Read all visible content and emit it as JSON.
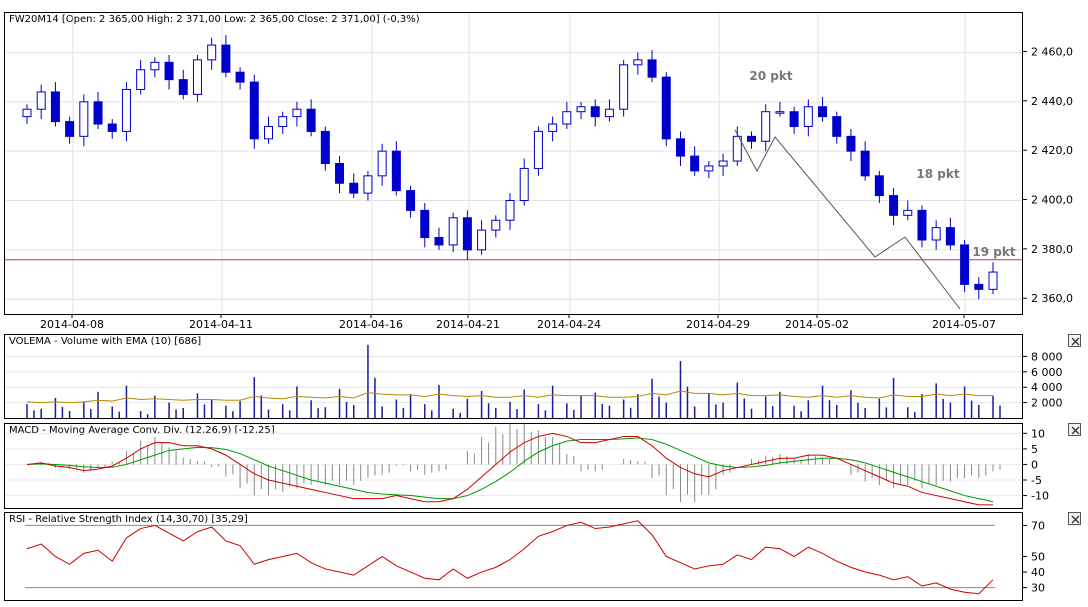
{
  "main": {
    "title": "FW20M14 [Open: 2 365,00  High: 2 371,00  Low: 2 365,00  Close: 2 371,00] (-0,3%)",
    "y_ticks": [
      "2 460,0",
      "2 440,0",
      "2 420,0",
      "2 400,0",
      "2 380,0",
      "2 360,0"
    ],
    "x_ticks": [
      "2014-04-08",
      "2014-04-11",
      "2014-04-16",
      "2014-04-21",
      "2014-04-24",
      "2014-04-29",
      "2014-05-02",
      "2014-05-07"
    ],
    "annotations": [
      "20 pkt",
      "18 pkt",
      "19 pkt"
    ],
    "ref_line_value": 2376,
    "colors": {
      "candle": "#0000cc",
      "ref_line": "#cc3333",
      "zigzag": "#555555",
      "annotation": "#777777"
    }
  },
  "volume": {
    "title": "VOLEMA - Volume with EMA (10) [686]",
    "y_ticks": [
      "8 000",
      "6 000",
      "4 000",
      "2 000"
    ],
    "colors": {
      "bars": "#1a1aa0",
      "ema": "#b58a00"
    }
  },
  "macd": {
    "title": "MACD - Moving Average Conv. Div. (12,26,9) [-12,25]",
    "y_ticks": [
      "10",
      "5",
      "0",
      "-5",
      "-10"
    ],
    "colors": {
      "macd": "#cc0000",
      "signal": "#009900",
      "hist": "#888888"
    }
  },
  "rsi": {
    "title": "RSI - Relative Strength Index (14,30,70) [35,29]",
    "y_ticks": [
      "70",
      "50",
      "40",
      "30"
    ],
    "colors": {
      "rsi": "#cc0000",
      "levels": "#888888"
    }
  },
  "chart_data": [
    {
      "type": "line",
      "title": "FW20M14 [Open: 2 365,00  High: 2 371,00  Low: 2 365,00  Close: 2 371,00] (-0,3%)",
      "series": [
        {
          "values": [
            2437,
            2444,
            2432,
            2426,
            2440,
            2431,
            2428,
            2445,
            2453,
            2456,
            2449,
            2443,
            2457,
            2463,
            2452,
            2448,
            2425,
            2430,
            2434,
            2437,
            2428,
            2415,
            2407,
            2403,
            2410,
            2420,
            2404,
            2396,
            2385,
            2382,
            2393,
            2380,
            2388,
            2392,
            2400,
            2413,
            2428,
            2431,
            2436,
            2438,
            2434,
            2437,
            2455,
            2457,
            2450,
            2425,
            2418,
            2412,
            2414,
            2416,
            2426,
            2424,
            2436,
            2436,
            2430,
            2438,
            2434,
            2426,
            2420,
            2410,
            2402,
            2394,
            2396,
            2384,
            2389,
            2382,
            2366,
            2364,
            2371
          ]
        }
      ],
      "ylim": [
        2354,
        2476
      ]
    },
    {
      "type": "bar",
      "title": "VOLEMA - Volume with EMA (10) [686]",
      "series": [
        {
          "values": [
            1800,
            1200,
            2600,
            900,
            2100,
            3400,
            1500,
            4200,
            900,
            2900,
            2000,
            1300,
            3200,
            2400,
            1600,
            2200,
            5300,
            1100,
            1800,
            4100,
            2300,
            1400,
            3800,
            1700,
            9500,
            1500,
            2400,
            3100,
            1800,
            4300,
            1200,
            2500,
            3500,
            1300,
            2100,
            3700,
            1800,
            4200,
            1900,
            2900,
            3300,
            1600,
            2400,
            3100,
            5100,
            2000,
            7400,
            1500,
            3200,
            2000,
            4600,
            1200,
            2800,
            3400,
            1600,
            2300,
            4200,
            1700,
            3600,
            1300,
            2500,
            5200,
            1400,
            3100,
            4500,
            2000,
            4100,
            1700,
            2900
          ]
        },
        {
          "values": [
            2100,
            2000,
            2100,
            2000,
            2100,
            2300,
            2200,
            2600,
            2400,
            2500,
            2400,
            2300,
            2400,
            2400,
            2300,
            2300,
            2800,
            2600,
            2500,
            2800,
            2700,
            2600,
            2800,
            2600,
            3300,
            3100,
            3000,
            3000,
            2800,
            3100,
            2900,
            2800,
            2900,
            2700,
            2700,
            2900,
            2700,
            3000,
            2900,
            2900,
            2900,
            2700,
            2700,
            2800,
            3200,
            3000,
            3500,
            3200,
            3200,
            3000,
            3200,
            2900,
            2900,
            3000,
            2800,
            2700,
            2900,
            2700,
            2900,
            2700,
            2600,
            3000,
            2800,
            2800,
            3100,
            2900,
            3100,
            2900,
            2900
          ]
        }
      ],
      "ylim": [
        0,
        10000
      ]
    },
    {
      "type": "line",
      "title": "MACD - Moving Average Conv. Div. (12,26,9) [-12,25]",
      "series": [
        {
          "values": [
            0,
            0.5,
            -0.5,
            -1,
            -2,
            -1.5,
            -0.5,
            2,
            5,
            7,
            7,
            6,
            6,
            5,
            3,
            0,
            -3,
            -5,
            -6,
            -7,
            -8,
            -9,
            -10,
            -11,
            -11,
            -11,
            -10,
            -11,
            -12,
            -12,
            -11,
            -8,
            -4,
            0,
            4,
            7,
            9,
            10,
            9,
            7,
            7,
            8,
            9,
            9,
            6,
            2,
            -1,
            -3,
            -4,
            -2,
            -1,
            0,
            1,
            2,
            2,
            3,
            3,
            2,
            0,
            -2,
            -4,
            -6,
            -7,
            -9,
            -10,
            -11,
            -12,
            -13,
            -13
          ]
        },
        {
          "values": [
            0,
            0.2,
            0,
            -0.3,
            -0.8,
            -1,
            -0.9,
            0,
            1.5,
            3,
            4.5,
            5,
            5.5,
            5.4,
            4.8,
            3.5,
            1.5,
            -0.5,
            -2,
            -3.5,
            -5,
            -6,
            -7,
            -8,
            -9,
            -9.5,
            -9.8,
            -10,
            -10.5,
            -11,
            -11,
            -10,
            -8,
            -5.5,
            -2.5,
            1,
            4,
            6,
            7.5,
            8,
            8,
            8,
            8.2,
            8.5,
            8,
            6.5,
            4.5,
            2.5,
            0.5,
            -0.5,
            -1,
            -0.8,
            -0.3,
            0.5,
            1,
            1.5,
            2,
            2,
            1.5,
            0.5,
            -1,
            -2.5,
            -4,
            -5.5,
            -7,
            -8.5,
            -10,
            -11,
            -12
          ]
        }
      ],
      "ylim": [
        -14,
        13
      ]
    },
    {
      "type": "line",
      "title": "RSI - Relative Strength Index (14,30,70) [35,29]",
      "series": [
        {
          "values": [
            55,
            58,
            50,
            45,
            52,
            54,
            47,
            62,
            68,
            70,
            65,
            60,
            66,
            69,
            60,
            57,
            45,
            48,
            50,
            52,
            46,
            42,
            40,
            38,
            44,
            50,
            44,
            40,
            36,
            35,
            42,
            36,
            40,
            43,
            48,
            55,
            63,
            66,
            70,
            72,
            68,
            69,
            71,
            73,
            64,
            50,
            46,
            42,
            44,
            45,
            51,
            48,
            56,
            55,
            50,
            56,
            52,
            47,
            43,
            40,
            38,
            35,
            37,
            31,
            33,
            29,
            27,
            26,
            35
          ]
        }
      ],
      "ylim": [
        22,
        78
      ]
    }
  ]
}
